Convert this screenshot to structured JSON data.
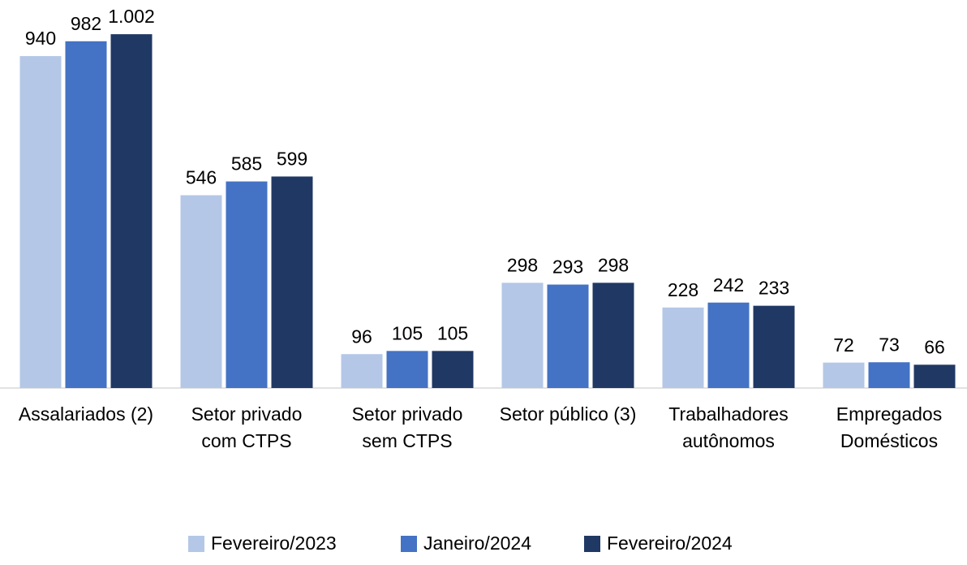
{
  "chart_data": {
    "type": "bar",
    "categories": [
      "Assalariados (2)",
      "Setor privado\ncom CTPS",
      "Setor privado\nsem CTPS",
      "Setor público (3)",
      "Trabalhadores\nautônomos",
      "Empregados\nDomésticos"
    ],
    "series": [
      {
        "name": "Fevereiro/2023",
        "color": "#b4c7e7",
        "values": [
          940,
          546,
          96,
          298,
          228,
          72
        ]
      },
      {
        "name": "Janeiro/2024",
        "color": "#4472c4",
        "values": [
          982,
          585,
          105,
          293,
          242,
          73
        ]
      },
      {
        "name": "Fevereiro/2024",
        "color": "#203864",
        "values": [
          1002,
          599,
          105,
          298,
          233,
          66
        ],
        "value_labels": [
          "1.002",
          "599",
          "105",
          "298",
          "233",
          "66"
        ]
      }
    ],
    "ylim": [
      0,
      1000
    ],
    "legend": "bottom"
  }
}
